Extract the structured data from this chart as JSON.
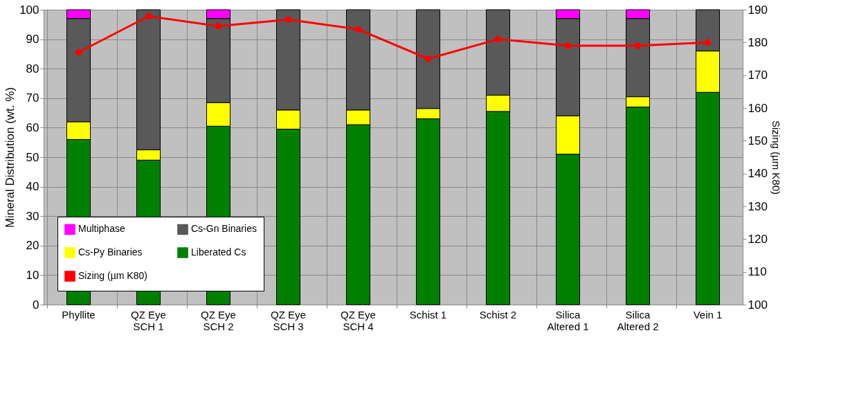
{
  "chart_data": {
    "type": "bar",
    "stacked": true,
    "ylabel": "Mineral Distribution (wt. %)",
    "y2label": "Sizing (µm K80)",
    "categories": [
      "Phyllite",
      "QZ Eye\nSCH 1",
      "QZ Eye\nSCH 2",
      "QZ Eye\nSCH 3",
      "QZ Eye\nSCH 4",
      "Schist 1",
      "Schist 2",
      "Silica\nAltered 1",
      "Silica\nAltered 2",
      "Vein 1"
    ],
    "series": [
      {
        "name": "Liberated  Cs",
        "color": "#008000",
        "values": [
          56,
          49,
          60.5,
          59.5,
          61,
          63,
          65.5,
          51,
          67,
          72
        ]
      },
      {
        "name": "Cs-Py Binaries",
        "color": "#ffff00",
        "values": [
          6,
          3.5,
          8,
          6.5,
          5,
          3.5,
          5.5,
          13,
          3.5,
          14
        ]
      },
      {
        "name": "Cs-Gn Binaries",
        "color": "#595959",
        "values": [
          35,
          47.5,
          28.5,
          34,
          34,
          33.5,
          29,
          33,
          26.5,
          14
        ]
      },
      {
        "name": "Multiphase",
        "color": "#ff00ff",
        "values": [
          3,
          0,
          3,
          0,
          0,
          0,
          0,
          3,
          3,
          0
        ]
      },
      {
        "name": "Sizing (µm K80)",
        "type": "line",
        "axis": "y2",
        "color": "#ff0000",
        "values": [
          177,
          188,
          185,
          187,
          184,
          175,
          181,
          179,
          179,
          180
        ]
      }
    ],
    "ylim": [
      0,
      100
    ],
    "yticks": [
      0,
      10,
      20,
      30,
      40,
      50,
      60,
      70,
      80,
      90,
      100
    ],
    "y2lim": [
      100,
      190
    ],
    "y2ticks": [
      100,
      110,
      120,
      130,
      140,
      150,
      160,
      170,
      180,
      190
    ],
    "grid": true,
    "legend": "bottom left",
    "marker": "circle",
    "line_style": "solid"
  }
}
